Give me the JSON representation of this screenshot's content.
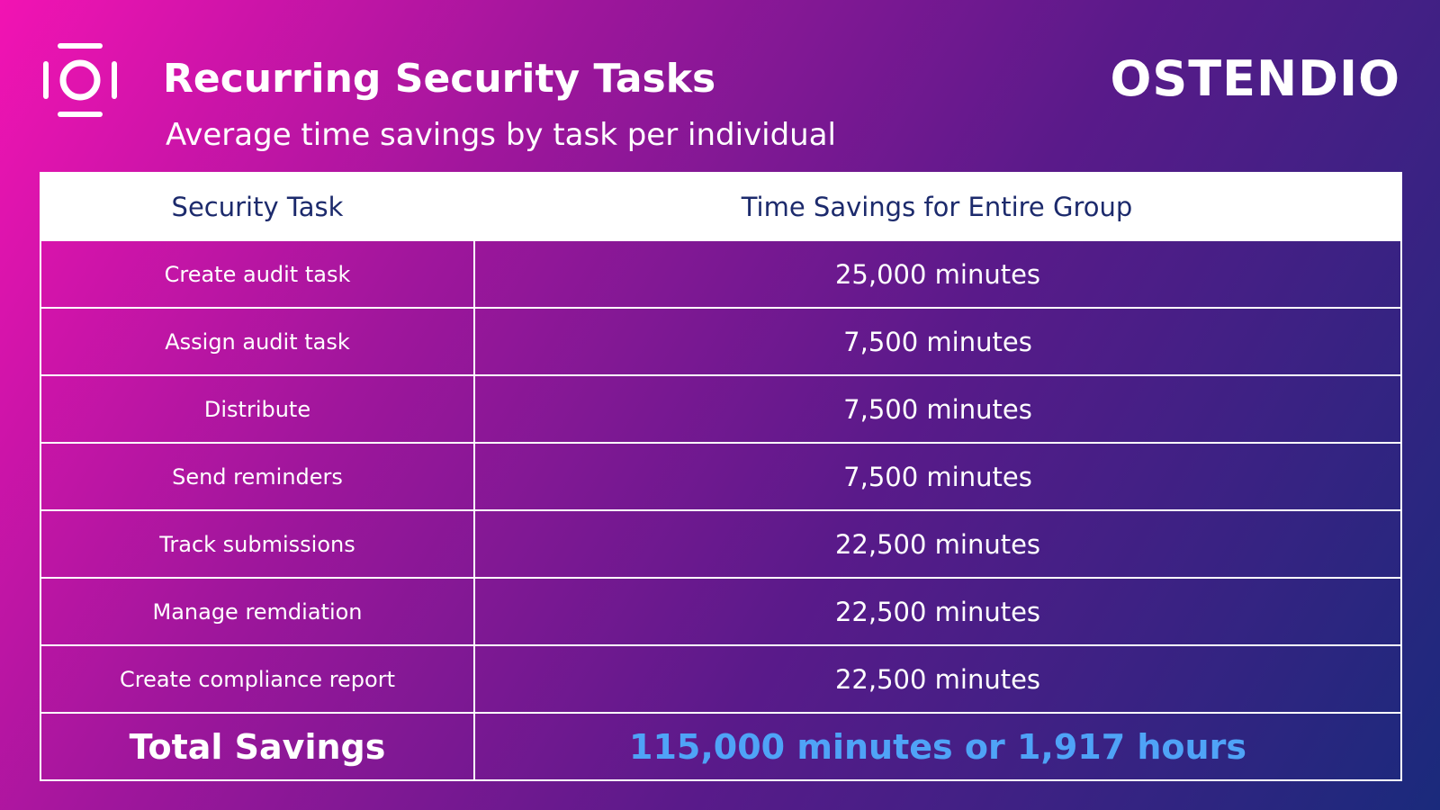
{
  "header": {
    "title": "Recurring Security Tasks",
    "subtitle": "Average time savings by task per individual",
    "brand": "OSTENDIO"
  },
  "table": {
    "columns": [
      "Security Task",
      "Time Savings for Entire Group"
    ],
    "rows": [
      [
        "Create audit task",
        "25,000 minutes"
      ],
      [
        "Assign audit task",
        "7,500 minutes"
      ],
      [
        "Distribute",
        "7,500 minutes"
      ],
      [
        "Send reminders",
        "7,500 minutes"
      ],
      [
        "Track submissions",
        "22,500 minutes"
      ],
      [
        "Manage remdiation",
        "22,500 minutes"
      ],
      [
        "Create compliance report",
        "22,500 minutes"
      ]
    ],
    "total": [
      "Total Savings",
      "115,000 minutes or 1,917 hours"
    ]
  }
}
